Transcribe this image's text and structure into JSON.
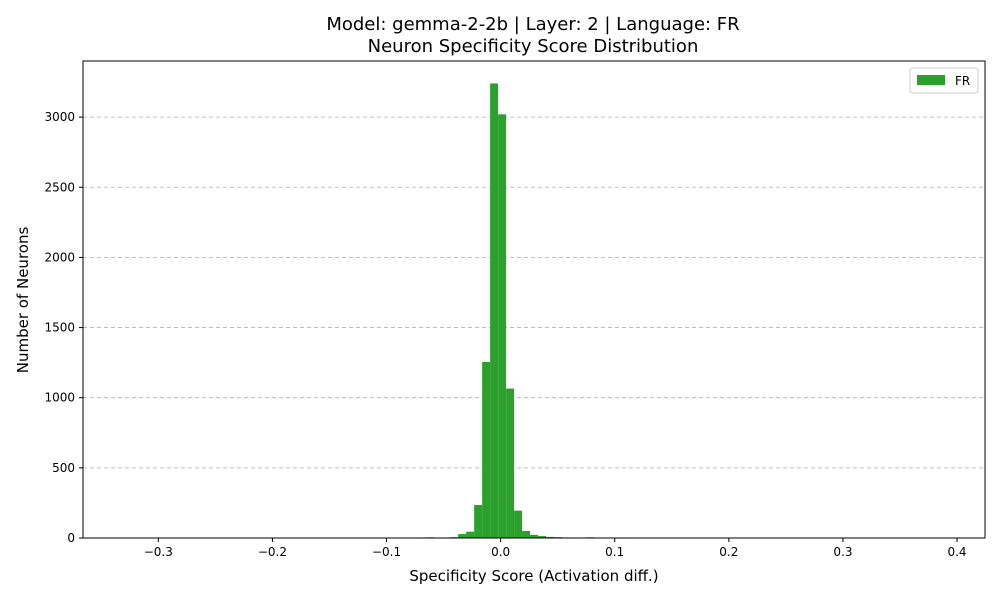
{
  "chart_data": {
    "type": "bar",
    "title_line1": "Model: gemma-2-2b | Layer: 2 | Language: FR",
    "title_line2": "Neuron Specificity Score Distribution",
    "xlabel": "Specificity Score (Activation diff.)",
    "ylabel": "Number of Neurons",
    "xlim": [
      -0.366,
      0.4245
    ],
    "ylim": [
      0,
      3400
    ],
    "x_ticks": [
      -0.3,
      -0.2,
      -0.1,
      0.0,
      0.1,
      0.2,
      0.3,
      0.4
    ],
    "x_tick_labels": [
      "−0.3",
      "−0.2",
      "−0.1",
      "0.0",
      "0.1",
      "0.2",
      "0.3",
      "0.4"
    ],
    "y_ticks": [
      0,
      500,
      1000,
      1500,
      2000,
      2500,
      3000
    ],
    "y_tick_labels": [
      "0",
      "500",
      "1000",
      "1500",
      "2000",
      "2500",
      "3000"
    ],
    "grid": "y-dashed",
    "legend_position": "top-right",
    "color": "#2ca02c",
    "series": [
      {
        "name": "FR",
        "bins": [
          {
            "x0": -0.0792,
            "x1": -0.0722,
            "value": 3
          },
          {
            "x0": -0.0722,
            "x1": -0.0652,
            "value": 4
          },
          {
            "x0": -0.0652,
            "x1": -0.0582,
            "value": 5
          },
          {
            "x0": -0.0582,
            "x1": -0.0512,
            "value": 3
          },
          {
            "x0": -0.0512,
            "x1": -0.0442,
            "value": 4
          },
          {
            "x0": -0.0442,
            "x1": -0.0372,
            "value": 6
          },
          {
            "x0": -0.0372,
            "x1": -0.0302,
            "value": 28
          },
          {
            "x0": -0.0302,
            "x1": -0.0232,
            "value": 45
          },
          {
            "x0": -0.0232,
            "x1": -0.0162,
            "value": 235
          },
          {
            "x0": -0.0162,
            "x1": -0.0092,
            "value": 1255
          },
          {
            "x0": -0.0092,
            "x1": -0.0022,
            "value": 3240
          },
          {
            "x0": -0.0022,
            "x1": 0.0048,
            "value": 3020
          },
          {
            "x0": 0.0048,
            "x1": 0.0118,
            "value": 1065
          },
          {
            "x0": 0.0118,
            "x1": 0.0188,
            "value": 195
          },
          {
            "x0": 0.0188,
            "x1": 0.0258,
            "value": 50
          },
          {
            "x0": 0.0258,
            "x1": 0.0328,
            "value": 22
          },
          {
            "x0": 0.0328,
            "x1": 0.0398,
            "value": 14
          },
          {
            "x0": 0.0398,
            "x1": 0.0468,
            "value": 8
          },
          {
            "x0": 0.0468,
            "x1": 0.0538,
            "value": 6
          },
          {
            "x0": 0.0538,
            "x1": 0.0608,
            "value": 4
          },
          {
            "x0": 0.0608,
            "x1": 0.0678,
            "value": 3
          },
          {
            "x0": 0.0748,
            "x1": 0.0818,
            "value": 5
          },
          {
            "x0": 0.0958,
            "x1": 0.1028,
            "value": 3
          },
          {
            "x0": 0.1028,
            "x1": 0.1098,
            "value": 4
          }
        ]
      }
    ]
  }
}
